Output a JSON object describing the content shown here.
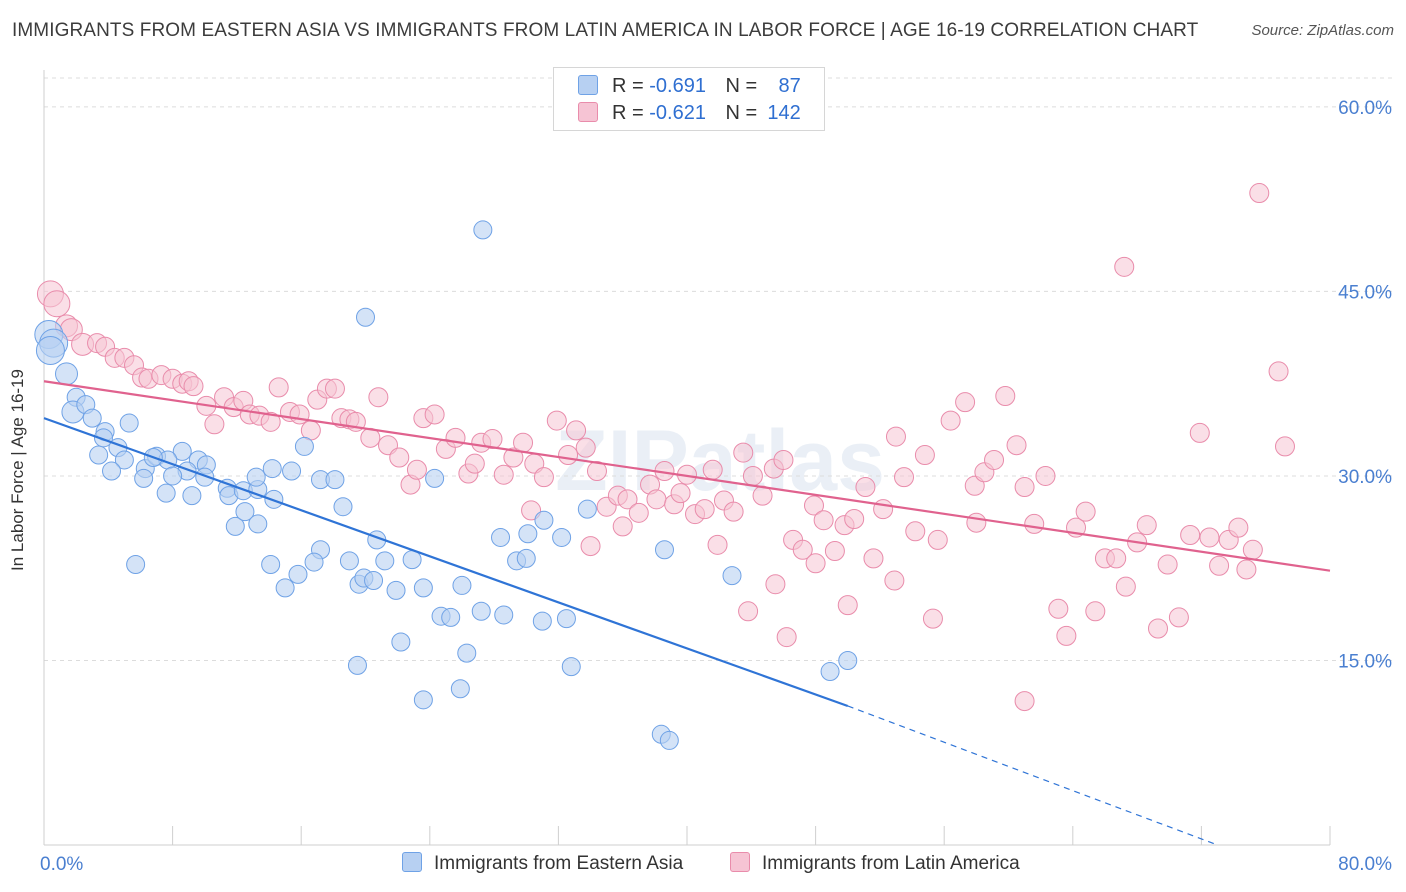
{
  "title": "IMMIGRANTS FROM EASTERN ASIA VS IMMIGRANTS FROM LATIN AMERICA IN LABOR FORCE | AGE 16-19 CORRELATION CHART",
  "source": "Source: ZipAtlas.com",
  "watermark": "ZIPatlas",
  "colors": {
    "blue": "#6fa2e6",
    "blue_fill": "#b7d0f2",
    "blue_line": "#2f74d6",
    "pink": "#e98cab",
    "pink_fill": "#f6c4d4",
    "pink_line": "#e0628e",
    "tick_text": "#4a7fd0"
  },
  "legend_top": {
    "rows": [
      {
        "r_label": "R =",
        "r_value": "-0.691",
        "n_label": "N =",
        "n_value": "87"
      },
      {
        "r_label": "R =",
        "r_value": "-0.621",
        "n_label": "N =",
        "n_value": "142"
      }
    ]
  },
  "legend_bottom": [
    "Immigrants from Eastern Asia",
    "Immigrants from Latin America"
  ],
  "chart_data": {
    "type": "scatter",
    "xlabel": "",
    "ylabel": "In Labor Force | Age 16-19",
    "xlim": [
      0,
      80
    ],
    "ylim": [
      0,
      63
    ],
    "x_tick_labels": [
      "0.0%",
      "80.0%"
    ],
    "y_ticks": [
      15,
      30,
      45,
      60
    ],
    "y_tick_labels": [
      "15.0%",
      "30.0%",
      "45.0%",
      "60.0%"
    ],
    "grid": "horizontal dashed",
    "legend_position": "top-center",
    "series": [
      {
        "name": "Immigrants from Eastern Asia",
        "trend": {
          "x0": 0,
          "y0": 34.7,
          "x1": 50,
          "y1": 11.3,
          "dashed_to_x": 73,
          "dashed_to_y": 0
        },
        "points": [
          [
            0.3,
            41.5
          ],
          [
            0.6,
            40.8
          ],
          [
            1.4,
            38.3
          ],
          [
            2.0,
            36.4
          ],
          [
            1.8,
            35.2
          ],
          [
            2.6,
            35.8
          ],
          [
            3.0,
            34.7
          ],
          [
            3.8,
            33.6
          ],
          [
            5.3,
            34.3
          ],
          [
            4.6,
            32.3
          ],
          [
            3.4,
            31.7
          ],
          [
            5.0,
            31.3
          ],
          [
            4.2,
            30.4
          ],
          [
            6.3,
            30.6
          ],
          [
            7.0,
            31.6
          ],
          [
            8.6,
            32.0
          ],
          [
            9.6,
            31.3
          ],
          [
            7.7,
            31.3
          ],
          [
            8.9,
            30.4
          ],
          [
            10.1,
            30.9
          ],
          [
            6.2,
            29.8
          ],
          [
            8.0,
            30.0
          ],
          [
            10.0,
            29.9
          ],
          [
            11.4,
            29.0
          ],
          [
            7.6,
            28.6
          ],
          [
            11.5,
            28.4
          ],
          [
            12.4,
            28.8
          ],
          [
            11.9,
            25.9
          ],
          [
            13.3,
            28.9
          ],
          [
            13.2,
            29.9
          ],
          [
            14.2,
            30.6
          ],
          [
            15.4,
            30.4
          ],
          [
            14.3,
            28.1
          ],
          [
            12.5,
            27.1
          ],
          [
            13.3,
            26.1
          ],
          [
            16.2,
            32.4
          ],
          [
            17.2,
            29.7
          ],
          [
            18.1,
            29.7
          ],
          [
            18.6,
            27.5
          ],
          [
            17.2,
            24.0
          ],
          [
            5.7,
            22.8
          ],
          [
            14.1,
            22.8
          ],
          [
            16.8,
            23.0
          ],
          [
            19.0,
            23.1
          ],
          [
            20.7,
            24.8
          ],
          [
            21.2,
            23.1
          ],
          [
            22.9,
            23.2
          ],
          [
            24.3,
            29.8
          ],
          [
            15.0,
            20.9
          ],
          [
            15.8,
            22.0
          ],
          [
            19.6,
            21.2
          ],
          [
            19.9,
            21.7
          ],
          [
            20.5,
            21.5
          ],
          [
            21.9,
            20.7
          ],
          [
            23.6,
            20.9
          ],
          [
            26.0,
            21.1
          ],
          [
            28.4,
            25.0
          ],
          [
            29.4,
            23.1
          ],
          [
            30.0,
            23.3
          ],
          [
            30.1,
            25.3
          ],
          [
            31.1,
            26.4
          ],
          [
            32.2,
            25.0
          ],
          [
            33.8,
            27.3
          ],
          [
            27.2,
            19.0
          ],
          [
            28.6,
            18.7
          ],
          [
            24.7,
            18.6
          ],
          [
            25.3,
            18.5
          ],
          [
            31.0,
            18.2
          ],
          [
            32.5,
            18.4
          ],
          [
            22.2,
            16.5
          ],
          [
            19.5,
            14.6
          ],
          [
            26.3,
            15.6
          ],
          [
            32.8,
            14.5
          ],
          [
            23.6,
            11.8
          ],
          [
            25.9,
            12.7
          ],
          [
            38.6,
            24.0
          ],
          [
            42.8,
            21.9
          ],
          [
            48.9,
            14.1
          ],
          [
            50.0,
            15.0
          ],
          [
            38.4,
            9.0
          ],
          [
            38.9,
            8.5
          ],
          [
            20.0,
            42.9
          ],
          [
            27.3,
            50.0
          ],
          [
            0.4,
            40.2
          ],
          [
            3.7,
            33.1
          ],
          [
            6.8,
            31.5
          ],
          [
            9.2,
            28.4
          ]
        ]
      },
      {
        "name": "Immigrants from Latin America",
        "trend": {
          "x0": 0,
          "y0": 37.7,
          "x1": 80,
          "y1": 22.3
        },
        "points": [
          [
            0.4,
            44.8
          ],
          [
            0.8,
            44.0
          ],
          [
            1.4,
            42.2
          ],
          [
            1.7,
            41.9
          ],
          [
            2.4,
            40.7
          ],
          [
            3.3,
            40.8
          ],
          [
            3.8,
            40.5
          ],
          [
            4.4,
            39.6
          ],
          [
            5.0,
            39.6
          ],
          [
            5.6,
            39.0
          ],
          [
            6.1,
            38.0
          ],
          [
            6.5,
            37.9
          ],
          [
            7.3,
            38.2
          ],
          [
            8.0,
            37.9
          ],
          [
            8.6,
            37.5
          ],
          [
            9.0,
            37.7
          ],
          [
            9.3,
            37.3
          ],
          [
            10.1,
            35.7
          ],
          [
            10.6,
            34.2
          ],
          [
            11.2,
            36.4
          ],
          [
            11.8,
            35.6
          ],
          [
            12.4,
            36.1
          ],
          [
            12.8,
            35.0
          ],
          [
            13.4,
            34.9
          ],
          [
            14.1,
            34.4
          ],
          [
            14.6,
            37.2
          ],
          [
            15.3,
            35.2
          ],
          [
            15.9,
            35.0
          ],
          [
            16.6,
            33.7
          ],
          [
            17.0,
            36.2
          ],
          [
            17.6,
            37.1
          ],
          [
            18.1,
            37.1
          ],
          [
            18.5,
            34.7
          ],
          [
            19.0,
            34.6
          ],
          [
            19.4,
            34.4
          ],
          [
            20.3,
            33.1
          ],
          [
            20.8,
            36.4
          ],
          [
            21.4,
            32.5
          ],
          [
            22.1,
            31.5
          ],
          [
            22.8,
            29.3
          ],
          [
            23.6,
            34.7
          ],
          [
            24.3,
            35.0
          ],
          [
            25.0,
            32.2
          ],
          [
            25.6,
            33.1
          ],
          [
            26.4,
            30.2
          ],
          [
            27.2,
            32.7
          ],
          [
            27.9,
            33.0
          ],
          [
            28.6,
            30.1
          ],
          [
            29.2,
            31.5
          ],
          [
            29.8,
            32.7
          ],
          [
            30.5,
            31.0
          ],
          [
            31.1,
            29.9
          ],
          [
            31.9,
            34.5
          ],
          [
            32.6,
            31.7
          ],
          [
            33.1,
            33.7
          ],
          [
            33.7,
            32.3
          ],
          [
            34.4,
            30.4
          ],
          [
            35.0,
            27.5
          ],
          [
            35.7,
            28.4
          ],
          [
            36.3,
            28.1
          ],
          [
            37.0,
            27.0
          ],
          [
            37.7,
            29.3
          ],
          [
            38.1,
            28.1
          ],
          [
            38.6,
            30.4
          ],
          [
            39.2,
            27.7
          ],
          [
            39.6,
            28.6
          ],
          [
            40.0,
            30.1
          ],
          [
            40.5,
            26.9
          ],
          [
            41.1,
            27.3
          ],
          [
            41.6,
            30.5
          ],
          [
            42.3,
            28.0
          ],
          [
            42.9,
            27.1
          ],
          [
            43.5,
            31.9
          ],
          [
            44.1,
            30.0
          ],
          [
            44.7,
            28.4
          ],
          [
            45.4,
            30.6
          ],
          [
            46.0,
            31.3
          ],
          [
            46.6,
            24.8
          ],
          [
            47.2,
            24.0
          ],
          [
            47.9,
            27.6
          ],
          [
            48.5,
            26.4
          ],
          [
            49.2,
            23.9
          ],
          [
            49.8,
            26.0
          ],
          [
            50.4,
            26.5
          ],
          [
            51.1,
            29.1
          ],
          [
            51.6,
            23.3
          ],
          [
            52.2,
            27.3
          ],
          [
            52.9,
            21.5
          ],
          [
            53.5,
            29.9
          ],
          [
            54.2,
            25.5
          ],
          [
            54.8,
            31.7
          ],
          [
            55.6,
            24.8
          ],
          [
            56.4,
            34.5
          ],
          [
            57.3,
            36.0
          ],
          [
            57.9,
            29.2
          ],
          [
            58.5,
            30.3
          ],
          [
            59.1,
            31.3
          ],
          [
            59.8,
            36.5
          ],
          [
            60.5,
            32.5
          ],
          [
            61.0,
            29.1
          ],
          [
            61.6,
            26.1
          ],
          [
            62.3,
            30.0
          ],
          [
            63.1,
            19.2
          ],
          [
            63.6,
            17.0
          ],
          [
            64.2,
            25.8
          ],
          [
            64.8,
            27.1
          ],
          [
            65.4,
            19.0
          ],
          [
            66.0,
            23.3
          ],
          [
            66.7,
            23.3
          ],
          [
            67.3,
            21.0
          ],
          [
            68.0,
            24.6
          ],
          [
            68.6,
            26.0
          ],
          [
            69.3,
            17.6
          ],
          [
            69.9,
            22.8
          ],
          [
            70.6,
            18.5
          ],
          [
            71.3,
            25.2
          ],
          [
            71.9,
            33.5
          ],
          [
            72.5,
            25.0
          ],
          [
            73.1,
            22.7
          ],
          [
            73.7,
            24.8
          ],
          [
            74.3,
            25.8
          ],
          [
            74.8,
            22.4
          ],
          [
            75.2,
            24.0
          ],
          [
            76.8,
            38.5
          ],
          [
            77.2,
            32.4
          ],
          [
            75.6,
            53.0
          ],
          [
            67.2,
            47.0
          ],
          [
            61.0,
            11.7
          ],
          [
            53.0,
            33.2
          ],
          [
            58.0,
            26.2
          ],
          [
            45.5,
            21.2
          ],
          [
            46.2,
            16.9
          ],
          [
            50.0,
            19.5
          ],
          [
            43.8,
            19.0
          ],
          [
            55.3,
            18.4
          ],
          [
            48.0,
            22.9
          ],
          [
            34.0,
            24.3
          ],
          [
            36.0,
            25.9
          ],
          [
            30.3,
            27.2
          ],
          [
            23.2,
            30.5
          ],
          [
            26.8,
            31.0
          ],
          [
            41.9,
            24.4
          ]
        ]
      }
    ]
  }
}
